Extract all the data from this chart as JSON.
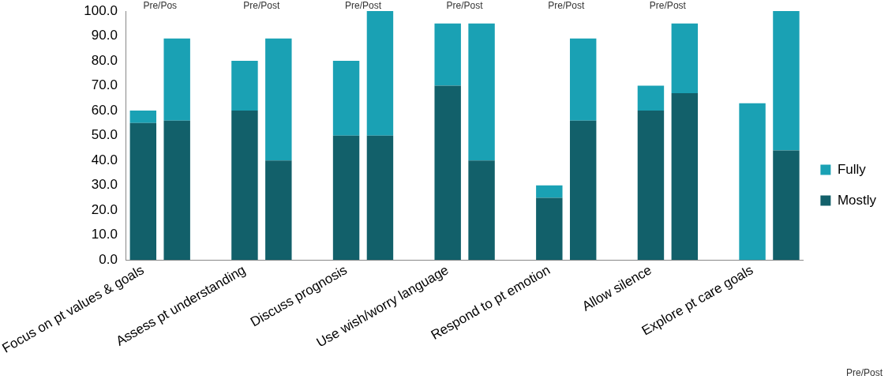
{
  "chart_data": {
    "type": "bar",
    "stacked": true,
    "categories": [
      "Focus on pt values & goals",
      null,
      null,
      "Assess pt understanding",
      null,
      null,
      "Discuss prognosis",
      null,
      null,
      "Use wish/worry language",
      null,
      null,
      "Respond to pt emotion",
      null,
      null,
      "Allow silence",
      null,
      null,
      "Explore pt care goals",
      null
    ],
    "series": [
      {
        "name": "Mostly",
        "color": "#12606a",
        "values": [
          55,
          56,
          null,
          60,
          40,
          null,
          50,
          50,
          null,
          70,
          40,
          null,
          25,
          56,
          null,
          60,
          67,
          null,
          0,
          44
        ]
      },
      {
        "name": "Fully",
        "color": "#1aa1b4",
        "values": [
          5,
          33,
          null,
          20,
          49,
          null,
          30,
          50,
          null,
          25,
          55,
          null,
          5,
          33,
          null,
          10,
          28,
          null,
          63,
          56
        ]
      }
    ],
    "ylim": [
      0,
      100
    ],
    "yticks": [
      {
        "value": 0,
        "label": "0.0"
      },
      {
        "value": 10,
        "label": "10.0"
      },
      {
        "value": 20,
        "label": "20.0"
      },
      {
        "value": 30,
        "label": "30.0"
      },
      {
        "value": 40,
        "label": "40.0"
      },
      {
        "value": 50,
        "label": "50.0"
      },
      {
        "value": 60,
        "label": "60.0"
      },
      {
        "value": 70,
        "label": "70.0"
      },
      {
        "value": 80,
        "label": "80.0"
      },
      {
        "value": 90,
        "label": "90.0"
      },
      {
        "value": 100,
        "label": "100.0"
      }
    ],
    "grid": false,
    "legend": "right",
    "annotations": [
      "Pre/Pos",
      "Pre/Post",
      "Pre/Post",
      "Pre/Post",
      "Pre/Post",
      "Pre/Post",
      "Pre/Post"
    ]
  }
}
